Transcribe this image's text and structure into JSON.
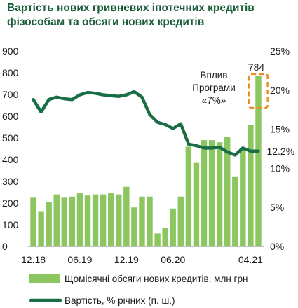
{
  "title_lines": [
    "Вартість нових гривневих іпотечних кредитів",
    "фізособам та обсяги нових кредитів"
  ],
  "colors": {
    "title": "#1a5c3a",
    "bar": "#8cc660",
    "line": "#1a6e45",
    "highlight": "#f08a24",
    "axis": "#7f7f7f"
  },
  "chart_data": {
    "type": "bar",
    "title": "Вартість нових гривневих іпотечних кредитів фізособам та обсяги нових кредитів",
    "x_tick_labels": [
      "12.18",
      "06.19",
      "12.19",
      "06.20",
      "04.21"
    ],
    "left_axis": {
      "ylim": [
        0,
        900
      ],
      "ticks": [
        "0",
        "100",
        "200",
        "300",
        "400",
        "500",
        "600",
        "700",
        "800",
        "900"
      ]
    },
    "right_axis": {
      "ylim": [
        0,
        25
      ],
      "ticks": [
        "0%",
        "5%",
        "10%",
        "15%",
        "20%",
        "25%"
      ]
    },
    "series": [
      {
        "name": "Щомісячні обсяги нових кредитів, млн грн",
        "type": "bar",
        "axis": "left",
        "values": [
          225,
          160,
          205,
          240,
          225,
          230,
          245,
          235,
          240,
          240,
          245,
          240,
          275,
          180,
          230,
          230,
          60,
          85,
          175,
          230,
          460,
          385,
          490,
          490,
          480,
          505,
          320,
          450,
          560,
          784
        ]
      },
      {
        "name": "Вартість, % річних (п. ш.)",
        "type": "line",
        "axis": "right",
        "values": [
          18.8,
          17.2,
          18.8,
          19.1,
          18.9,
          18.8,
          19.4,
          19.7,
          19.6,
          19.4,
          19.3,
          19.2,
          19.4,
          19.8,
          19.1,
          16.9,
          15.9,
          15.6,
          15.1,
          15.7,
          13.1,
          12.9,
          12.6,
          12.6,
          12.7,
          12.1,
          11.7,
          12.6,
          12.2,
          12.2
        ]
      }
    ],
    "annotations": {
      "peak_value": "784",
      "last_rate": "12.2%",
      "note_lines": [
        "Вплив",
        "Програми",
        "«7%»"
      ]
    }
  }
}
